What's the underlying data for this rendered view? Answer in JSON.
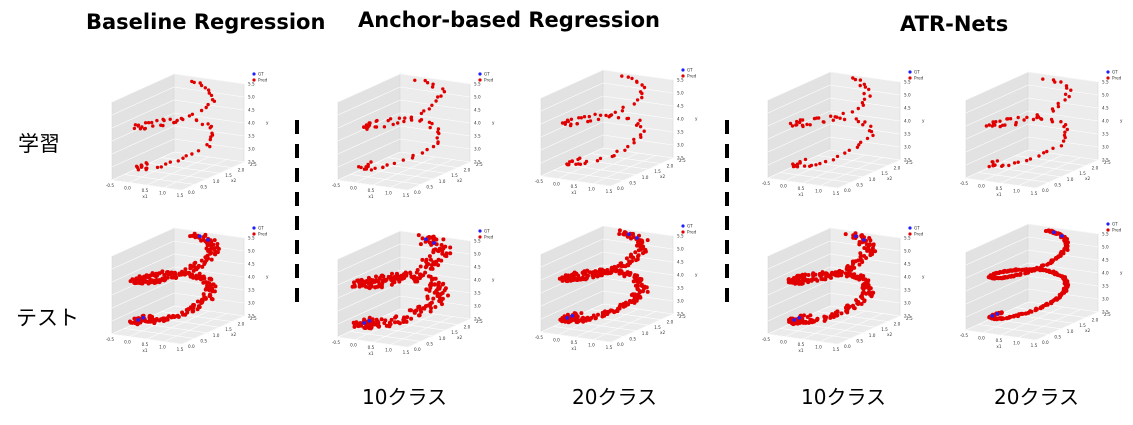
{
  "headers": {
    "baseline": "Baseline Regression",
    "anchor": "Anchor-based Regression",
    "atr": "ATR-Nets"
  },
  "row_labels": {
    "train": "学習",
    "test": "テスト"
  },
  "class_labels": {
    "anchor_10": "10クラス",
    "anchor_20": "20クラス",
    "atr_10": "10クラス",
    "atr_20": "20クラス"
  },
  "colors": {
    "gt": "#1f1fff",
    "pred": "#e00000",
    "pane": "#ebebeb",
    "grid": "#ffffff"
  },
  "chart_data": {
    "type": "scatter",
    "projection": "3d",
    "legend": [
      "GT",
      "Pred"
    ],
    "xlabel": "x1",
    "ylabel": "x2",
    "zlabel": "y",
    "x1_ticks": [
      "-0.5",
      "0.0",
      "0.5",
      "1.0",
      "1.5"
    ],
    "x2_ticks": [
      "0.0",
      "0.5",
      "1.0",
      "1.5",
      "2.0",
      "2.5"
    ],
    "z_ticks": [
      "2.5",
      "3.0",
      "3.5",
      "4.0",
      "4.5",
      "5.0",
      "5.5"
    ],
    "panels": [
      {
        "id": "p1",
        "method": "Baseline Regression",
        "set": "train",
        "gt_visible": false,
        "pred_density": "sparse",
        "noise": 0.02
      },
      {
        "id": "p2",
        "method": "Anchor-based Regression",
        "classes": 10,
        "set": "train",
        "gt_visible": false,
        "pred_density": "sparse",
        "noise": 0.02
      },
      {
        "id": "p3",
        "method": "Anchor-based Regression",
        "classes": 20,
        "set": "train",
        "gt_visible": false,
        "pred_density": "sparse",
        "noise": 0.02
      },
      {
        "id": "p4",
        "method": "ATR-Nets",
        "classes": 10,
        "set": "train",
        "gt_visible": false,
        "pred_density": "sparse",
        "noise": 0.02
      },
      {
        "id": "p5",
        "method": "ATR-Nets",
        "classes": 20,
        "set": "train",
        "gt_visible": false,
        "pred_density": "sparse",
        "noise": 0.02
      },
      {
        "id": "p6",
        "method": "Baseline Regression",
        "set": "test",
        "gt_visible": true,
        "pred_density": "dense",
        "noise": 0.03
      },
      {
        "id": "p7",
        "method": "Anchor-based Regression",
        "classes": 10,
        "set": "test",
        "gt_visible": true,
        "pred_density": "dense",
        "noise": 0.05
      },
      {
        "id": "p8",
        "method": "Anchor-based Regression",
        "classes": 20,
        "set": "test",
        "gt_visible": true,
        "pred_density": "dense",
        "noise": 0.03
      },
      {
        "id": "p9",
        "method": "ATR-Nets",
        "classes": 10,
        "set": "test",
        "gt_visible": true,
        "pred_density": "dense",
        "noise": 0.03
      },
      {
        "id": "p10",
        "method": "ATR-Nets",
        "classes": 20,
        "set": "test",
        "gt_visible": true,
        "pred_density": "dense",
        "noise": 0.01
      }
    ]
  }
}
